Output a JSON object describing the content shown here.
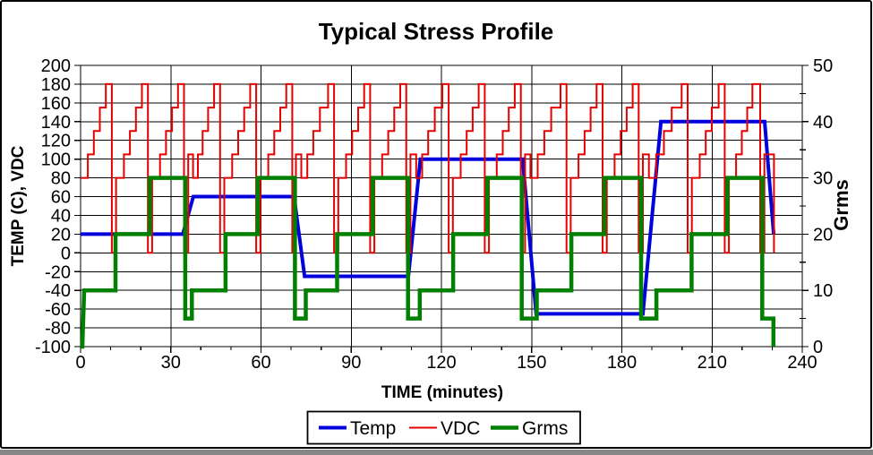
{
  "figure": {
    "background_color": "#ffffff",
    "border_color": "#000000",
    "bottom_strip_color": "#868686",
    "gridline_color": "#000000"
  },
  "chart_data": {
    "type": "line",
    "title": "Typical Stress Profile",
    "xlabel": "TIME (minutes)",
    "ylabel_left": "TEMP (C), VDC",
    "ylabel_right": "Grms",
    "grid": true,
    "legend_position": "bottom",
    "x_range": [
      0,
      240
    ],
    "y_left_range": [
      -100,
      200
    ],
    "y_right_range": [
      0,
      50
    ],
    "x_ticks": [
      0,
      30,
      60,
      90,
      120,
      150,
      180,
      210,
      240
    ],
    "x_minor_step": 10,
    "y_left_ticks": [
      200,
      180,
      160,
      140,
      120,
      100,
      80,
      60,
      40,
      20,
      0,
      -20,
      -40,
      -60,
      -80,
      -100
    ],
    "y_right_ticks": [
      50,
      40,
      30,
      20,
      10,
      0
    ],
    "y_right_minor_ticks": [
      45,
      35,
      25,
      15,
      5
    ],
    "series": [
      {
        "name": "Temp",
        "axis": "left",
        "color": "#0000dd",
        "width": 4,
        "points": [
          [
            0,
            20
          ],
          [
            34,
            20
          ],
          [
            37.5,
            60
          ],
          [
            71,
            60
          ],
          [
            74.5,
            -25
          ],
          [
            109,
            -25
          ],
          [
            113,
            100
          ],
          [
            147,
            100
          ],
          [
            151.5,
            -65
          ],
          [
            187,
            -65
          ],
          [
            193,
            140
          ],
          [
            227.5,
            140
          ],
          [
            230.5,
            20
          ]
        ]
      },
      {
        "name": "VDC",
        "axis": "left",
        "color": "#e60000",
        "width": 2,
        "points": [
          [
            0,
            80
          ],
          [
            2.4,
            80
          ],
          [
            2.4,
            105
          ],
          [
            4.4,
            105
          ],
          [
            4.4,
            130
          ],
          [
            6.4,
            130
          ],
          [
            6.4,
            155
          ],
          [
            8.4,
            155
          ],
          [
            8.4,
            180
          ],
          [
            10.4,
            180
          ],
          [
            10.4,
            0
          ],
          [
            11.8,
            0
          ],
          [
            11.8,
            80
          ],
          [
            14.4,
            80
          ],
          [
            14.4,
            105
          ],
          [
            16.4,
            105
          ],
          [
            16.4,
            130
          ],
          [
            18.4,
            130
          ],
          [
            18.4,
            155
          ],
          [
            20.4,
            155
          ],
          [
            20.4,
            180
          ],
          [
            22.4,
            180
          ],
          [
            22.4,
            0
          ],
          [
            23.8,
            0
          ],
          [
            23.8,
            80
          ],
          [
            26.4,
            80
          ],
          [
            26.4,
            105
          ],
          [
            28.4,
            105
          ],
          [
            28.4,
            130
          ],
          [
            30.4,
            130
          ],
          [
            30.4,
            155
          ],
          [
            32.4,
            155
          ],
          [
            32.4,
            180
          ],
          [
            34.4,
            180
          ],
          [
            34.4,
            0
          ],
          [
            35.8,
            0
          ],
          [
            35.8,
            105
          ],
          [
            37.4,
            105
          ],
          [
            37.4,
            80
          ],
          [
            39,
            80
          ],
          [
            39,
            105
          ],
          [
            40.6,
            105
          ],
          [
            40.6,
            130
          ],
          [
            42.4,
            130
          ],
          [
            42.4,
            155
          ],
          [
            44.4,
            155
          ],
          [
            44.4,
            180
          ],
          [
            46.4,
            180
          ],
          [
            46.4,
            0
          ],
          [
            47.8,
            0
          ],
          [
            47.8,
            80
          ],
          [
            50.4,
            80
          ],
          [
            50.4,
            105
          ],
          [
            52.4,
            105
          ],
          [
            52.4,
            130
          ],
          [
            54.4,
            130
          ],
          [
            54.4,
            155
          ],
          [
            56.4,
            155
          ],
          [
            56.4,
            180
          ],
          [
            58.4,
            180
          ],
          [
            58.4,
            0
          ],
          [
            59.8,
            0
          ],
          [
            59.8,
            80
          ],
          [
            62.4,
            80
          ],
          [
            62.4,
            105
          ],
          [
            64.4,
            105
          ],
          [
            64.4,
            130
          ],
          [
            66.4,
            130
          ],
          [
            66.4,
            155
          ],
          [
            68.4,
            155
          ],
          [
            68.4,
            180
          ],
          [
            70.4,
            180
          ],
          [
            70.4,
            0
          ],
          [
            71.6,
            0
          ],
          [
            71.6,
            105
          ],
          [
            73.4,
            105
          ],
          [
            73.4,
            80
          ],
          [
            75.4,
            80
          ],
          [
            75.4,
            105
          ],
          [
            77.4,
            105
          ],
          [
            77.4,
            130
          ],
          [
            79.6,
            130
          ],
          [
            79.6,
            155
          ],
          [
            82.3,
            155
          ],
          [
            82.3,
            180
          ],
          [
            84.3,
            180
          ],
          [
            84.3,
            0
          ],
          [
            85.7,
            0
          ],
          [
            85.7,
            80
          ],
          [
            88.3,
            80
          ],
          [
            88.3,
            105
          ],
          [
            90.3,
            105
          ],
          [
            90.3,
            130
          ],
          [
            92.3,
            130
          ],
          [
            92.3,
            155
          ],
          [
            94.3,
            155
          ],
          [
            94.3,
            180
          ],
          [
            96.3,
            180
          ],
          [
            96.3,
            0
          ],
          [
            97.7,
            0
          ],
          [
            97.7,
            80
          ],
          [
            100.3,
            80
          ],
          [
            100.3,
            105
          ],
          [
            102.3,
            105
          ],
          [
            102.3,
            130
          ],
          [
            104.3,
            130
          ],
          [
            104.3,
            155
          ],
          [
            106.3,
            155
          ],
          [
            106.3,
            180
          ],
          [
            108.3,
            180
          ],
          [
            108.3,
            0
          ],
          [
            109.7,
            0
          ],
          [
            109.7,
            105
          ],
          [
            111.6,
            105
          ],
          [
            111.6,
            80
          ],
          [
            113.6,
            80
          ],
          [
            113.6,
            105
          ],
          [
            115.6,
            105
          ],
          [
            115.6,
            130
          ],
          [
            117.8,
            130
          ],
          [
            117.8,
            155
          ],
          [
            120.3,
            155
          ],
          [
            120.3,
            180
          ],
          [
            122.4,
            180
          ],
          [
            122.4,
            0
          ],
          [
            123.8,
            0
          ],
          [
            123.8,
            80
          ],
          [
            126.4,
            80
          ],
          [
            126.4,
            105
          ],
          [
            128.4,
            105
          ],
          [
            128.4,
            130
          ],
          [
            130.4,
            130
          ],
          [
            130.4,
            155
          ],
          [
            132.4,
            155
          ],
          [
            132.4,
            180
          ],
          [
            134.4,
            180
          ],
          [
            134.4,
            0
          ],
          [
            135.8,
            0
          ],
          [
            135.8,
            80
          ],
          [
            138.4,
            80
          ],
          [
            138.4,
            105
          ],
          [
            140.4,
            105
          ],
          [
            140.4,
            130
          ],
          [
            142.4,
            130
          ],
          [
            142.4,
            155
          ],
          [
            144.4,
            155
          ],
          [
            144.4,
            180
          ],
          [
            146.4,
            180
          ],
          [
            146.4,
            0
          ],
          [
            147.8,
            0
          ],
          [
            147.8,
            105
          ],
          [
            149.6,
            105
          ],
          [
            149.6,
            80
          ],
          [
            152,
            80
          ],
          [
            152,
            105
          ],
          [
            154.2,
            105
          ],
          [
            154.2,
            130
          ],
          [
            156.5,
            130
          ],
          [
            156.5,
            155
          ],
          [
            159.6,
            155
          ],
          [
            159.6,
            180
          ],
          [
            161.6,
            180
          ],
          [
            161.6,
            0
          ],
          [
            163,
            0
          ],
          [
            163,
            80
          ],
          [
            165.6,
            80
          ],
          [
            165.6,
            105
          ],
          [
            167.6,
            105
          ],
          [
            167.6,
            130
          ],
          [
            169.6,
            130
          ],
          [
            169.6,
            155
          ],
          [
            171.6,
            155
          ],
          [
            171.6,
            180
          ],
          [
            173.6,
            180
          ],
          [
            173.6,
            0
          ],
          [
            175,
            0
          ],
          [
            175,
            80
          ],
          [
            177.6,
            80
          ],
          [
            177.6,
            105
          ],
          [
            179.6,
            105
          ],
          [
            179.6,
            130
          ],
          [
            181.6,
            130
          ],
          [
            181.6,
            155
          ],
          [
            183.6,
            155
          ],
          [
            183.6,
            180
          ],
          [
            185.6,
            180
          ],
          [
            185.6,
            0
          ],
          [
            187,
            0
          ],
          [
            187,
            105
          ],
          [
            189,
            105
          ],
          [
            189,
            80
          ],
          [
            191.4,
            80
          ],
          [
            191.4,
            105
          ],
          [
            194,
            105
          ],
          [
            194,
            130
          ],
          [
            196.6,
            130
          ],
          [
            196.6,
            155
          ],
          [
            199.9,
            155
          ],
          [
            199.9,
            180
          ],
          [
            201.9,
            180
          ],
          [
            201.9,
            0
          ],
          [
            203.3,
            0
          ],
          [
            203.3,
            80
          ],
          [
            205.9,
            80
          ],
          [
            205.9,
            105
          ],
          [
            207.9,
            105
          ],
          [
            207.9,
            130
          ],
          [
            209.9,
            130
          ],
          [
            209.9,
            155
          ],
          [
            212.2,
            155
          ],
          [
            212.2,
            180
          ],
          [
            214.2,
            180
          ],
          [
            214.2,
            0
          ],
          [
            215.6,
            0
          ],
          [
            215.6,
            80
          ],
          [
            218,
            80
          ],
          [
            218,
            105
          ],
          [
            219.9,
            105
          ],
          [
            219.9,
            130
          ],
          [
            221.7,
            130
          ],
          [
            221.7,
            155
          ],
          [
            223.4,
            155
          ],
          [
            223.4,
            180
          ],
          [
            226,
            180
          ],
          [
            226,
            0
          ],
          [
            227.4,
            0
          ],
          [
            227.4,
            105
          ],
          [
            230.6,
            105
          ],
          [
            230.6,
            0
          ]
        ]
      },
      {
        "name": "Grms",
        "axis": "right",
        "color": "#008000",
        "width": 4.5,
        "points": [
          [
            0,
            0
          ],
          [
            0.6,
            0
          ],
          [
            1.2,
            10
          ],
          [
            11.6,
            10
          ],
          [
            11.6,
            20
          ],
          [
            23,
            20
          ],
          [
            23,
            30
          ],
          [
            34.8,
            30
          ],
          [
            34.8,
            5
          ],
          [
            37,
            5
          ],
          [
            37,
            10
          ],
          [
            48.2,
            10
          ],
          [
            48.2,
            20
          ],
          [
            58.9,
            20
          ],
          [
            58.9,
            30
          ],
          [
            71.3,
            30
          ],
          [
            71.3,
            5
          ],
          [
            74.9,
            5
          ],
          [
            74.9,
            10
          ],
          [
            85.3,
            10
          ],
          [
            85.3,
            20
          ],
          [
            97.2,
            20
          ],
          [
            97.2,
            30
          ],
          [
            108.9,
            30
          ],
          [
            108.9,
            5
          ],
          [
            112.8,
            5
          ],
          [
            112.8,
            10
          ],
          [
            123.9,
            10
          ],
          [
            123.9,
            20
          ],
          [
            135.3,
            20
          ],
          [
            135.3,
            30
          ],
          [
            146.7,
            30
          ],
          [
            146.7,
            5
          ],
          [
            151.7,
            5
          ],
          [
            151.7,
            10
          ],
          [
            163.2,
            10
          ],
          [
            163.2,
            20
          ],
          [
            174.2,
            20
          ],
          [
            174.2,
            30
          ],
          [
            186.4,
            30
          ],
          [
            186.4,
            5
          ],
          [
            191.5,
            5
          ],
          [
            191.5,
            10
          ],
          [
            203.2,
            10
          ],
          [
            203.2,
            20
          ],
          [
            215.1,
            20
          ],
          [
            215.1,
            30
          ],
          [
            226.7,
            30
          ],
          [
            226.7,
            5
          ],
          [
            230.4,
            5
          ],
          [
            230.4,
            0
          ]
        ]
      }
    ]
  }
}
